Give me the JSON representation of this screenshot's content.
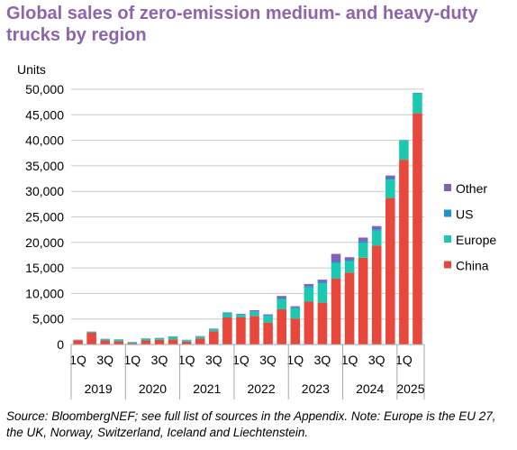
{
  "title": "Global sales of zero-emission medium- and heavy-duty trucks by region",
  "source_note": "Source: BloombergNEF; see full list of sources in the Appendix. Note: Europe is the EU 27, the UK, Norway, Switzerland, Iceland and Liechtenstein.",
  "chart_data": {
    "type": "bar",
    "stacked": true,
    "ylabel": "Units",
    "ylim": [
      0,
      50000
    ],
    "yticks": [
      0,
      5000,
      10000,
      15000,
      20000,
      25000,
      30000,
      35000,
      40000,
      45000,
      50000
    ],
    "ytick_labels": [
      "0",
      "5,000",
      "10,000",
      "15,000",
      "20,000",
      "25,000",
      "30,000",
      "35,000",
      "40,000",
      "45,000",
      "50,000"
    ],
    "grid": true,
    "legend_position": "right",
    "categories": [
      "1Q 2019",
      "2Q 2019",
      "3Q 2019",
      "4Q 2019",
      "1Q 2020",
      "2Q 2020",
      "3Q 2020",
      "4Q 2020",
      "1Q 2021",
      "2Q 2021",
      "3Q 2021",
      "4Q 2021",
      "1Q 2022",
      "2Q 2022",
      "3Q 2022",
      "4Q 2022",
      "1Q 2023",
      "2Q 2023",
      "3Q 2023",
      "4Q 2023",
      "1Q 2024",
      "2Q 2024",
      "3Q 2024",
      "4Q 2024",
      "1Q 2025",
      "2Q 2025"
    ],
    "quarter_labels": [
      "1Q",
      "",
      "3Q",
      "",
      "1Q",
      "",
      "3Q",
      "",
      "1Q",
      "",
      "3Q",
      "",
      "1Q",
      "",
      "3Q",
      "",
      "1Q",
      "",
      "3Q",
      "",
      "1Q",
      "",
      "3Q",
      "",
      "1Q",
      ""
    ],
    "years": [
      "2019",
      "2020",
      "2021",
      "2022",
      "2023",
      "2024",
      "2025"
    ],
    "series": [
      {
        "name": "China",
        "color": "#E8473C",
        "values": [
          850,
          2300,
          800,
          650,
          250,
          800,
          900,
          1000,
          550,
          1200,
          2600,
          5300,
          5300,
          5600,
          4300,
          6900,
          5100,
          8400,
          8200,
          12900,
          14100,
          17000,
          19400,
          28700,
          36200,
          45300
        ]
      },
      {
        "name": "Europe",
        "color": "#1BC9B0",
        "values": [
          80,
          200,
          250,
          300,
          200,
          350,
          350,
          500,
          300,
          350,
          400,
          800,
          500,
          800,
          1300,
          2000,
          2000,
          2800,
          3800,
          3100,
          2200,
          2900,
          2900,
          3600,
          3700,
          3900
        ]
      },
      {
        "name": "US",
        "color": "#1F8FD1",
        "values": [
          10,
          20,
          30,
          30,
          20,
          20,
          30,
          40,
          30,
          40,
          60,
          80,
          100,
          120,
          150,
          200,
          200,
          250,
          300,
          250,
          300,
          350,
          300,
          300,
          120,
          100
        ]
      },
      {
        "name": "Other",
        "color": "#8460B8",
        "values": [
          20,
          30,
          40,
          40,
          30,
          30,
          40,
          60,
          40,
          60,
          60,
          100,
          100,
          200,
          150,
          400,
          200,
          400,
          400,
          1500,
          500,
          700,
          600,
          500,
          10,
          10
        ]
      }
    ],
    "legend_order": [
      "Other",
      "US",
      "Europe",
      "China"
    ]
  }
}
